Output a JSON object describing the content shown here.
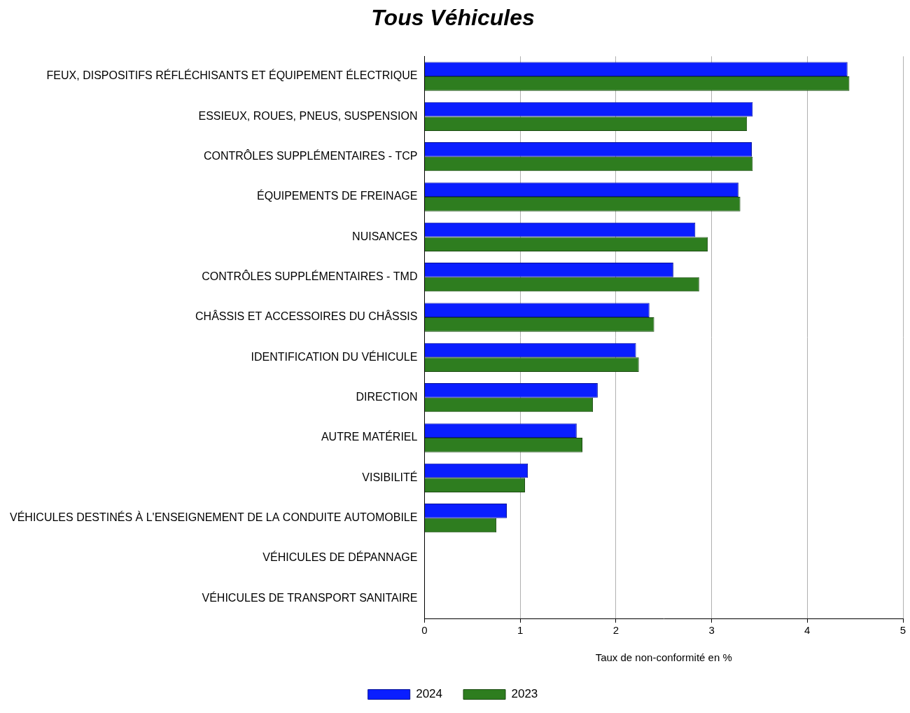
{
  "chart_data": {
    "type": "bar",
    "title": "Tous Véhicules",
    "orientation": "horizontal",
    "x_label": "Taux de non-conformité en %",
    "categories": [
      "FEUX, DISPOSITIFS RÉFLÉCHISANTS ET ÉQUIPEMENT ÉLECTRIQUE",
      "ESSIEUX, ROUES, PNEUS, SUSPENSION",
      "CONTRÔLES SUPPLÉMENTAIRES - TCP",
      "ÉQUIPEMENTS DE FREINAGE",
      "NUISANCES",
      "CONTRÔLES SUPPLÉMENTAIRES - TMD",
      "CHÂSSIS ET ACCESSOIRES DU CHÂSSIS",
      "IDENTIFICATION DU VÉHICULE",
      "DIRECTION",
      "AUTRE MATÉRIEL",
      "VISIBILITÉ",
      "VÉHICULES DESTINÉS À L'ENSEIGNEMENT DE LA CONDUITE AUTOMOBILE",
      "VÉHICULES DE DÉPANNAGE",
      "VÉHICULES DE TRANSPORT SANITAIRE"
    ],
    "series": [
      {
        "name": "2024",
        "color": "#0a1eff",
        "values": [
          4.42,
          3.43,
          3.42,
          3.28,
          2.83,
          2.6,
          2.35,
          2.21,
          1.81,
          1.59,
          1.08,
          0.86,
          null,
          null
        ]
      },
      {
        "name": "2023",
        "color": "#2e7d1f",
        "values": [
          4.44,
          3.37,
          3.43,
          3.3,
          2.96,
          2.87,
          2.4,
          2.24,
          1.76,
          1.65,
          1.05,
          0.75,
          null,
          null
        ]
      }
    ],
    "xlim": [
      0,
      5
    ],
    "xticks": [
      0,
      1,
      2,
      3,
      4,
      5
    ],
    "grid": true,
    "legend": "bottom"
  }
}
